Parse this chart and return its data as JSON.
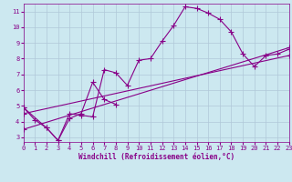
{
  "background_color": "#cce8f0",
  "line_color": "#880088",
  "marker": "+",
  "linewidth": 0.8,
  "markersize": 4,
  "markeredgewidth": 0.8,
  "series1_x": [
    0,
    1,
    2,
    3,
    4,
    5,
    6,
    7,
    8,
    9,
    10,
    11,
    12,
    13,
    14,
    15,
    16,
    17,
    18,
    19,
    20,
    21,
    22,
    23
  ],
  "series1_y": [
    4.9,
    4.1,
    3.6,
    2.8,
    4.5,
    4.4,
    4.3,
    7.3,
    7.1,
    6.3,
    7.9,
    8.0,
    9.1,
    10.1,
    11.3,
    11.2,
    10.9,
    10.5,
    9.7,
    8.3,
    7.5,
    8.2,
    8.3,
    8.6
  ],
  "series2_x": [
    0,
    2,
    3,
    4,
    5,
    6,
    7,
    8
  ],
  "series2_y": [
    4.9,
    3.6,
    2.8,
    4.2,
    4.5,
    6.5,
    5.4,
    5.1
  ],
  "series3_x": [
    0,
    23
  ],
  "series3_y": [
    3.5,
    8.7
  ],
  "series4_x": [
    0,
    23
  ],
  "series4_y": [
    4.5,
    8.2
  ],
  "xlim": [
    0,
    23
  ],
  "ylim": [
    2.7,
    11.5
  ],
  "xticks": [
    0,
    1,
    2,
    3,
    4,
    5,
    6,
    7,
    8,
    9,
    10,
    11,
    12,
    13,
    14,
    15,
    16,
    17,
    18,
    19,
    20,
    21,
    22,
    23
  ],
  "yticks": [
    3,
    4,
    5,
    6,
    7,
    8,
    9,
    10,
    11
  ],
  "xlabel": "Windchill (Refroidissement éolien,°C)",
  "xlabel_fontsize": 5.5,
  "tick_fontsize": 5,
  "grid_color": "#b0c8d8",
  "grid_linewidth": 0.5
}
